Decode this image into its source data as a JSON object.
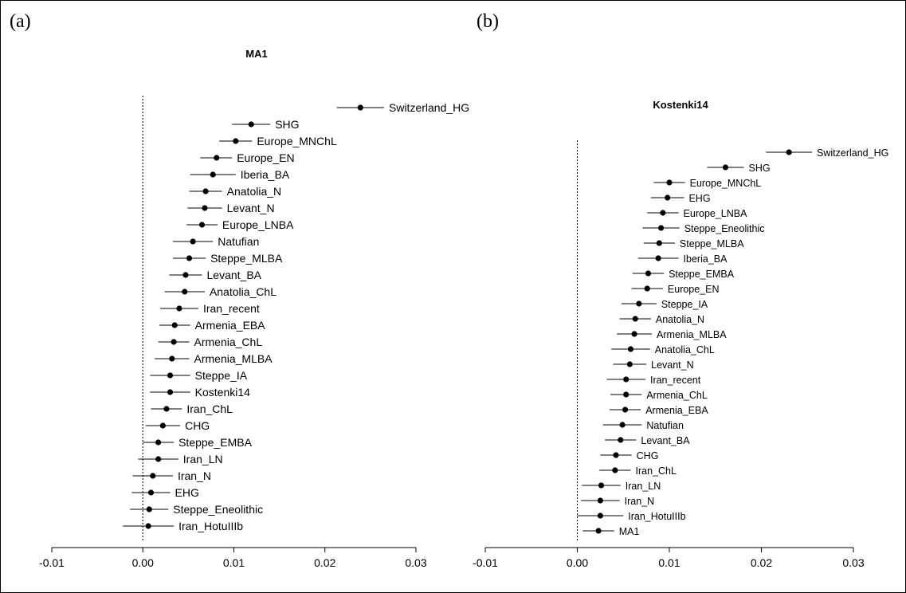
{
  "panel_labels": [
    "(a)",
    "(b)"
  ],
  "chart_data": [
    {
      "type": "scatter",
      "subtype": "dot-with-error-bars",
      "title": "MA1",
      "xlim": [
        -0.01,
        0.03
      ],
      "x_ticks": [
        "-0.01",
        "0.00",
        "0.01",
        "0.02",
        "0.03"
      ],
      "reference_line": 0,
      "points": [
        {
          "label": "Switzerland_HG",
          "value": 0.0239,
          "low": 0.0213,
          "high": 0.0265
        },
        {
          "label": "SHG",
          "value": 0.0119,
          "low": 0.0098,
          "high": 0.014
        },
        {
          "label": "Europe_MNChL",
          "value": 0.0102,
          "low": 0.0084,
          "high": 0.012
        },
        {
          "label": "Europe_EN",
          "value": 0.0081,
          "low": 0.0063,
          "high": 0.0098
        },
        {
          "label": "Iberia_BA",
          "value": 0.0077,
          "low": 0.0052,
          "high": 0.0102
        },
        {
          "label": "Anatolia_N",
          "value": 0.0069,
          "low": 0.0051,
          "high": 0.0087
        },
        {
          "label": "Levant_N",
          "value": 0.0068,
          "low": 0.0049,
          "high": 0.0087
        },
        {
          "label": "Europe_LNBA",
          "value": 0.0065,
          "low": 0.0048,
          "high": 0.0082
        },
        {
          "label": "Natufian",
          "value": 0.0055,
          "low": 0.0033,
          "high": 0.0077
        },
        {
          "label": "Steppe_MLBA",
          "value": 0.0051,
          "low": 0.0033,
          "high": 0.0069
        },
        {
          "label": "Levant_BA",
          "value": 0.0047,
          "low": 0.0029,
          "high": 0.0065
        },
        {
          "label": "Anatolia_ChL",
          "value": 0.0046,
          "low": 0.0024,
          "high": 0.0068
        },
        {
          "label": "Iran_recent",
          "value": 0.004,
          "low": 0.0019,
          "high": 0.0061
        },
        {
          "label": "Armenia_EBA",
          "value": 0.0035,
          "low": 0.0018,
          "high": 0.0052
        },
        {
          "label": "Armenia_ChL",
          "value": 0.0034,
          "low": 0.0017,
          "high": 0.0051
        },
        {
          "label": "Armenia_MLBA",
          "value": 0.0032,
          "low": 0.0013,
          "high": 0.0051
        },
        {
          "label": "Steppe_IA",
          "value": 0.003,
          "low": 0.0008,
          "high": 0.0052
        },
        {
          "label": "Kostenki14",
          "value": 0.003,
          "low": 0.0008,
          "high": 0.0052
        },
        {
          "label": "Iran_ChL",
          "value": 0.0026,
          "low": 0.0009,
          "high": 0.0043
        },
        {
          "label": "CHG",
          "value": 0.0022,
          "low": 0.0003,
          "high": 0.0041
        },
        {
          "label": "Steppe_EMBA",
          "value": 0.0017,
          "low": 0.0,
          "high": 0.0034
        },
        {
          "label": "Iran_LN",
          "value": 0.0017,
          "low": -0.0005,
          "high": 0.0039
        },
        {
          "label": "Iran_N",
          "value": 0.0011,
          "low": -0.0011,
          "high": 0.0033
        },
        {
          "label": "EHG",
          "value": 0.0009,
          "low": -0.0012,
          "high": 0.003
        },
        {
          "label": "Steppe_Eneolithic",
          "value": 0.0007,
          "low": -0.0014,
          "high": 0.0028
        },
        {
          "label": "Iran_HotuIIIb",
          "value": 0.0006,
          "low": -0.0022,
          "high": 0.0034
        }
      ]
    },
    {
      "type": "scatter",
      "subtype": "dot-with-error-bars",
      "title": "Kostenki14",
      "xlim": [
        -0.01,
        0.03
      ],
      "x_ticks": [
        "-0.01",
        "0.00",
        "0.01",
        "0.02",
        "0.03"
      ],
      "reference_line": 0,
      "points": [
        {
          "label": "Switzerland_HG",
          "value": 0.023,
          "low": 0.0205,
          "high": 0.0255
        },
        {
          "label": "SHG",
          "value": 0.0161,
          "low": 0.0141,
          "high": 0.0181
        },
        {
          "label": "Europe_MNChL",
          "value": 0.01,
          "low": 0.0083,
          "high": 0.0117
        },
        {
          "label": "EHG",
          "value": 0.0098,
          "low": 0.008,
          "high": 0.0116
        },
        {
          "label": "Europe_LNBA",
          "value": 0.0093,
          "low": 0.0076,
          "high": 0.011
        },
        {
          "label": "Steppe_Eneolithic",
          "value": 0.0091,
          "low": 0.0071,
          "high": 0.0111
        },
        {
          "label": "Steppe_MLBA",
          "value": 0.0089,
          "low": 0.0072,
          "high": 0.0106
        },
        {
          "label": "Iberia_BA",
          "value": 0.0088,
          "low": 0.0066,
          "high": 0.011
        },
        {
          "label": "Steppe_EMBA",
          "value": 0.0077,
          "low": 0.006,
          "high": 0.0094
        },
        {
          "label": "Europe_EN",
          "value": 0.0076,
          "low": 0.0059,
          "high": 0.0093
        },
        {
          "label": "Steppe_IA",
          "value": 0.0067,
          "low": 0.0048,
          "high": 0.0086
        },
        {
          "label": "Anatolia_N",
          "value": 0.0063,
          "low": 0.0046,
          "high": 0.008
        },
        {
          "label": "Armenia_MLBA",
          "value": 0.0062,
          "low": 0.0043,
          "high": 0.0081
        },
        {
          "label": "Anatolia_ChL",
          "value": 0.0058,
          "low": 0.0037,
          "high": 0.0079
        },
        {
          "label": "Levant_N",
          "value": 0.0057,
          "low": 0.0039,
          "high": 0.0075
        },
        {
          "label": "Iran_recent",
          "value": 0.0053,
          "low": 0.0032,
          "high": 0.0074
        },
        {
          "label": "Armenia_ChL",
          "value": 0.0053,
          "low": 0.0036,
          "high": 0.007
        },
        {
          "label": "Armenia_EBA",
          "value": 0.0052,
          "low": 0.0035,
          "high": 0.0069
        },
        {
          "label": "Natufian",
          "value": 0.0049,
          "low": 0.0028,
          "high": 0.007
        },
        {
          "label": "Levant_BA",
          "value": 0.0047,
          "low": 0.003,
          "high": 0.0064
        },
        {
          "label": "CHG",
          "value": 0.0042,
          "low": 0.0025,
          "high": 0.0059
        },
        {
          "label": "Iran_ChL",
          "value": 0.0041,
          "low": 0.0024,
          "high": 0.0058
        },
        {
          "label": "Iran_LN",
          "value": 0.0026,
          "low": 0.0005,
          "high": 0.0047
        },
        {
          "label": "Iran_N",
          "value": 0.0025,
          "low": 0.0004,
          "high": 0.0046
        },
        {
          "label": "Iran_HotuIIIb",
          "value": 0.0025,
          "low": 0.0,
          "high": 0.005
        },
        {
          "label": "MA1",
          "value": 0.0023,
          "low": 0.0006,
          "high": 0.004
        }
      ]
    }
  ]
}
